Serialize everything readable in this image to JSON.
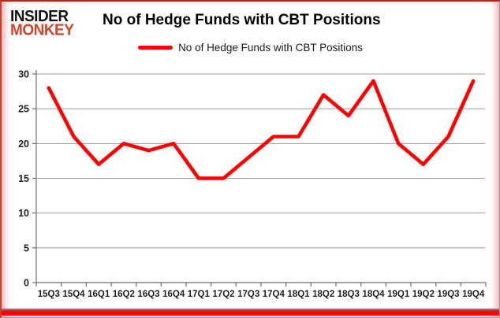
{
  "logo": {
    "line1": "INSIDER",
    "line2": "MONKEY",
    "color_line1": "#141414",
    "color_line2": "#d2452c"
  },
  "header": {
    "title": "No of Hedge Funds with CBT Positions"
  },
  "legend": {
    "label": "No of Hedge Funds with CBT Positions",
    "swatch_color": "#ff0000"
  },
  "chart_data": {
    "type": "line",
    "title": "No of Hedge Funds with CBT Positions",
    "categories": [
      "15Q3",
      "15Q4",
      "16Q1",
      "16Q2",
      "16Q3",
      "16Q4",
      "17Q1",
      "17Q2",
      "17Q3",
      "17Q4",
      "18Q1",
      "18Q2",
      "18Q3",
      "18Q4",
      "19Q1",
      "19Q2",
      "19Q3",
      "19Q4"
    ],
    "series": [
      {
        "name": "No of Hedge Funds with CBT Positions",
        "color": "#ff0000",
        "values": [
          28,
          21,
          17,
          20,
          19,
          20,
          15,
          15,
          18,
          21,
          21,
          27,
          24,
          29,
          20,
          17,
          21,
          29
        ]
      }
    ],
    "xlabel": "",
    "ylabel": "",
    "ylim": [
      0,
      30
    ],
    "yticks": [
      0,
      5,
      10,
      15,
      20,
      25,
      30
    ],
    "grid": true,
    "legend_position": "top",
    "gridline_color": "#9b9b9b",
    "axis_color": "#6e6e6e",
    "tick_label_color": "#1f1f1f"
  },
  "frame": {
    "bottom_bar_color": "#ff0000"
  }
}
